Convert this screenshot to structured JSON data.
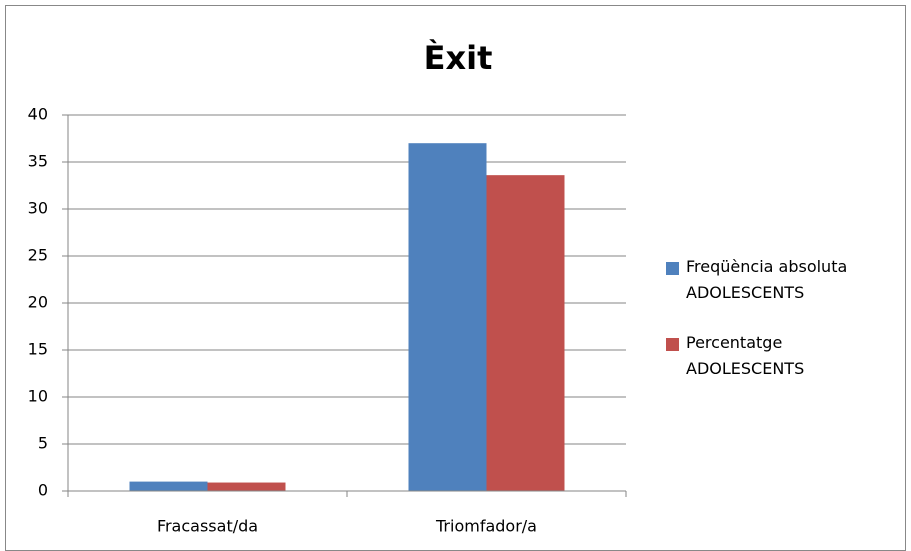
{
  "chart_data": {
    "type": "bar",
    "title": "Èxit",
    "categories": [
      "Fracassat/da",
      "Triomfador/a"
    ],
    "series": [
      {
        "name": "Freqüència absoluta ADOLESCENTS",
        "color": "#4f81bd",
        "values": [
          1,
          37
        ]
      },
      {
        "name": "Percentatge ADOLESCENTS",
        "color": "#c0504d",
        "values": [
          0.9,
          33.6
        ]
      }
    ],
    "ylim": [
      0,
      40
    ],
    "yticks": [
      0,
      5,
      10,
      15,
      20,
      25,
      30,
      35,
      40
    ],
    "grid": true,
    "legend": "right"
  }
}
